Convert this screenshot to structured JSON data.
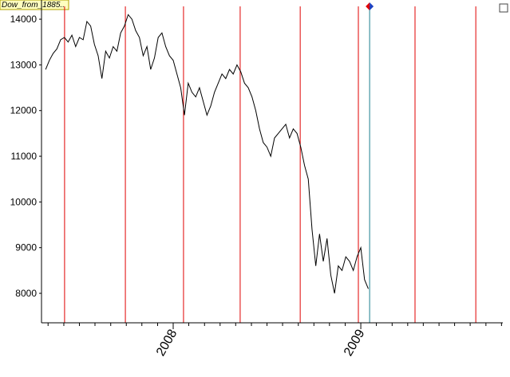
{
  "chart_data": {
    "type": "line",
    "label": "Dow_from_1885..",
    "x": [
      2007.32,
      2007.34,
      2007.36,
      2007.38,
      2007.4,
      2007.42,
      2007.44,
      2007.46,
      2007.48,
      2007.5,
      2007.52,
      2007.54,
      2007.56,
      2007.58,
      2007.6,
      2007.62,
      2007.64,
      2007.66,
      2007.68,
      2007.7,
      2007.72,
      2007.74,
      2007.76,
      2007.78,
      2007.8,
      2007.82,
      2007.84,
      2007.86,
      2007.88,
      2007.9,
      2007.92,
      2007.94,
      2007.96,
      2007.98,
      2008.0,
      2008.02,
      2008.04,
      2008.06,
      2008.08,
      2008.1,
      2008.12,
      2008.14,
      2008.16,
      2008.18,
      2008.2,
      2008.22,
      2008.24,
      2008.26,
      2008.28,
      2008.3,
      2008.32,
      2008.34,
      2008.36,
      2008.38,
      2008.4,
      2008.42,
      2008.44,
      2008.46,
      2008.48,
      2008.5,
      2008.52,
      2008.54,
      2008.56,
      2008.58,
      2008.6,
      2008.62,
      2008.64,
      2008.66,
      2008.68,
      2008.7,
      2008.72,
      2008.74,
      2008.76,
      2008.78,
      2008.8,
      2008.82,
      2008.84,
      2008.86,
      2008.88,
      2008.9,
      2008.92,
      2008.94,
      2008.96,
      2008.98,
      2009.0,
      2009.02,
      2009.04
    ],
    "series": [
      {
        "color": "#000000",
        "values": [
          12900,
          13100,
          13250,
          13350,
          13550,
          13600,
          13500,
          13650,
          13400,
          13600,
          13550,
          13950,
          13850,
          13450,
          13200,
          12700,
          13300,
          13150,
          13400,
          13300,
          13700,
          13850,
          14100,
          14000,
          13750,
          13600,
          13200,
          13400,
          12900,
          13150,
          13600,
          13700,
          13400,
          13200,
          13100,
          12800,
          12500,
          11900,
          12600,
          12400,
          12300,
          12500,
          12200,
          11900,
          12100,
          12400,
          12600,
          12800,
          12700,
          12900,
          12800,
          13000,
          12850,
          12600,
          12500,
          12300,
          12000,
          11600,
          11300,
          11200,
          11000,
          11400,
          11500,
          11600,
          11700,
          11400,
          11600,
          11500,
          11200,
          10800,
          10500,
          9400,
          8600,
          9300,
          8700,
          9200,
          8400,
          8000,
          8600,
          8500,
          8800,
          8700,
          8500,
          8800,
          9000,
          8300,
          8100
        ]
      }
    ],
    "xlim": [
      2007.298,
      2009.757
    ],
    "xticks": [
      2008,
      2009
    ],
    "xminorticks": [
      2007.333,
      2007.417,
      2007.5,
      2007.583,
      2007.667,
      2007.75,
      2007.833,
      2007.917,
      2008.083,
      2008.167,
      2008.25,
      2008.333,
      2008.417,
      2008.5,
      2008.583,
      2008.667,
      2008.75,
      2008.833,
      2008.917,
      2009.083,
      2009.167,
      2009.25,
      2009.333,
      2009.417,
      2009.5,
      2009.583,
      2009.667,
      2009.75
    ],
    "ylim": [
      7355,
      14420
    ],
    "yticks": [
      8000,
      9000,
      10000,
      11000,
      12000,
      13000,
      14000
    ],
    "vlines": [
      2007.421,
      2007.745,
      2008.055,
      2008.357,
      2008.677,
      2008.987,
      2009.289,
      2009.613
    ],
    "vline_color": "#e00000",
    "cursor": 2009.047,
    "cursor_color": "#1a7f8f"
  }
}
